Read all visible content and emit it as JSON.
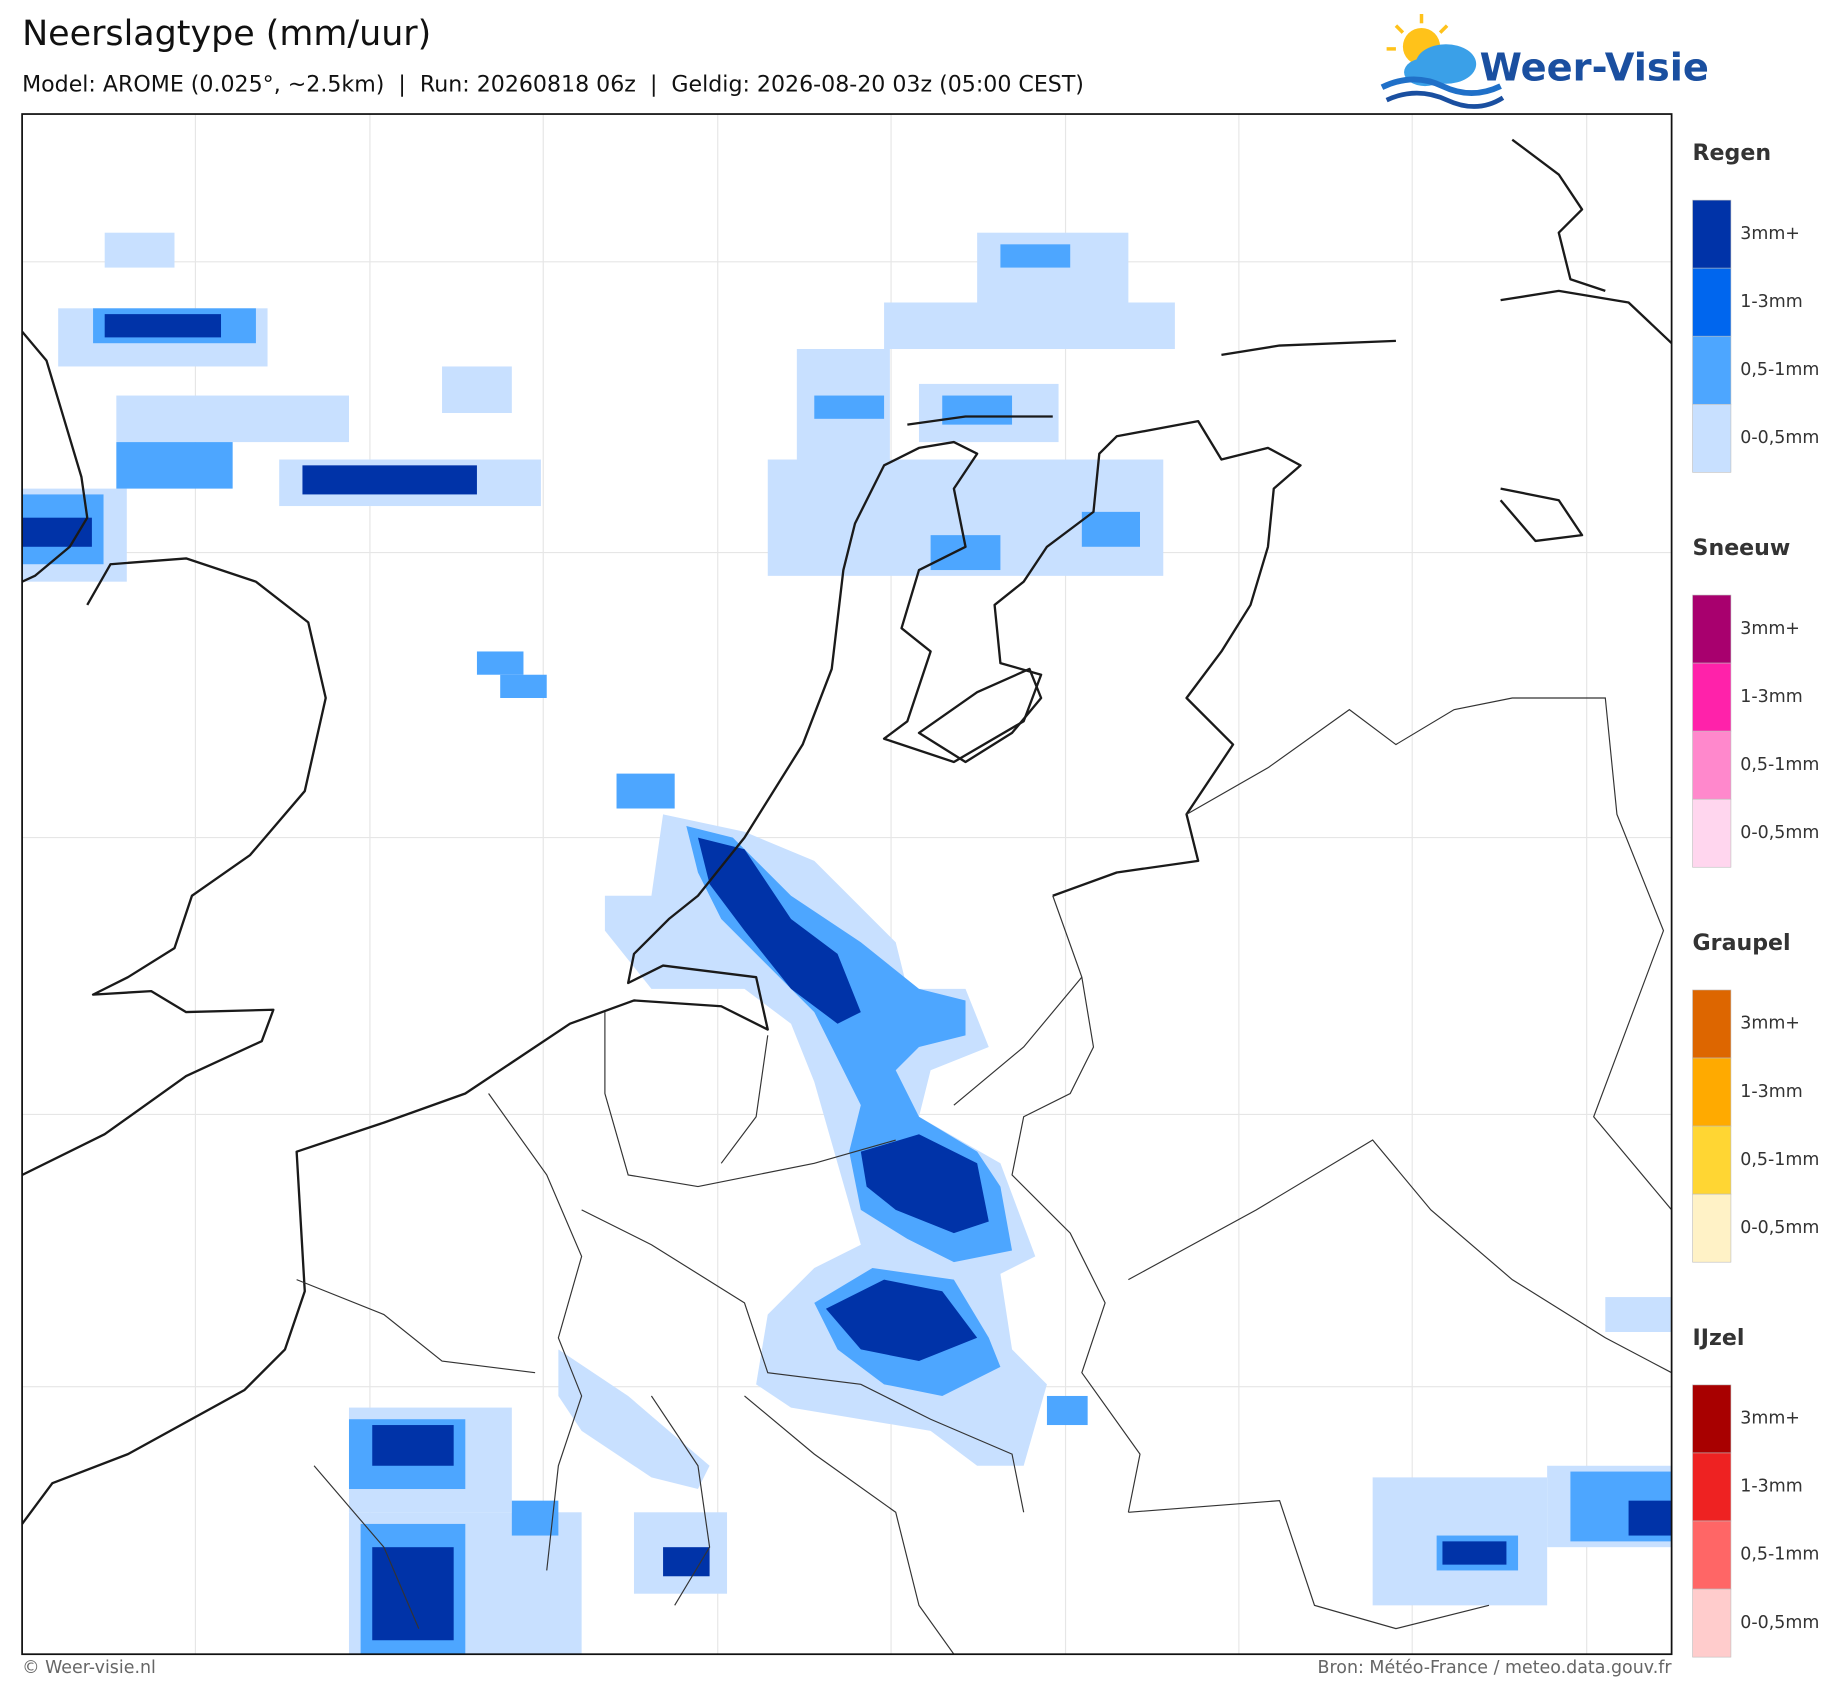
{
  "header": {
    "title": "Neerslagtype (mm/uur)",
    "subtitle": "Model: AROME (0.025°, ~2.5km)  |  Run: 20260818 06z  |  Geldig: 2026-08-20 03z (05:00 CEST)",
    "logo": "Weer-Visie"
  },
  "legend": [
    {
      "title": "Regen",
      "items": [
        {
          "label": "3mm+",
          "color": "#0033a8"
        },
        {
          "label": "1-3mm",
          "color": "#0066ee"
        },
        {
          "label": "0,5-1mm",
          "color": "#4da6ff"
        },
        {
          "label": "0-0,5mm",
          "color": "#c8e0ff"
        }
      ]
    },
    {
      "title": "Sneeuw",
      "items": [
        {
          "label": "3mm+",
          "color": "#a8006e"
        },
        {
          "label": "1-3mm",
          "color": "#ff22aa"
        },
        {
          "label": "0,5-1mm",
          "color": "#ff88cc"
        },
        {
          "label": "0-0,5mm",
          "color": "#ffd6ee"
        }
      ]
    },
    {
      "title": "Graupel",
      "items": [
        {
          "label": "3mm+",
          "color": "#dd6600"
        },
        {
          "label": "1-3mm",
          "color": "#ffaa00"
        },
        {
          "label": "0,5-1mm",
          "color": "#ffd633"
        },
        {
          "label": "0-0,5mm",
          "color": "#fff2c6"
        }
      ]
    },
    {
      "title": "IJzel",
      "items": [
        {
          "label": "3mm+",
          "color": "#a80000"
        },
        {
          "label": "1-3mm",
          "color": "#ee2222"
        },
        {
          "label": "0,5-1mm",
          "color": "#ff6666"
        },
        {
          "label": "0-0,5mm",
          "color": "#ffcccc"
        }
      ]
    }
  ],
  "footer": {
    "credit": "© Weer-visie.nl",
    "source": "Bron: Météo-France / meteo.data.gouv.fr"
  }
}
